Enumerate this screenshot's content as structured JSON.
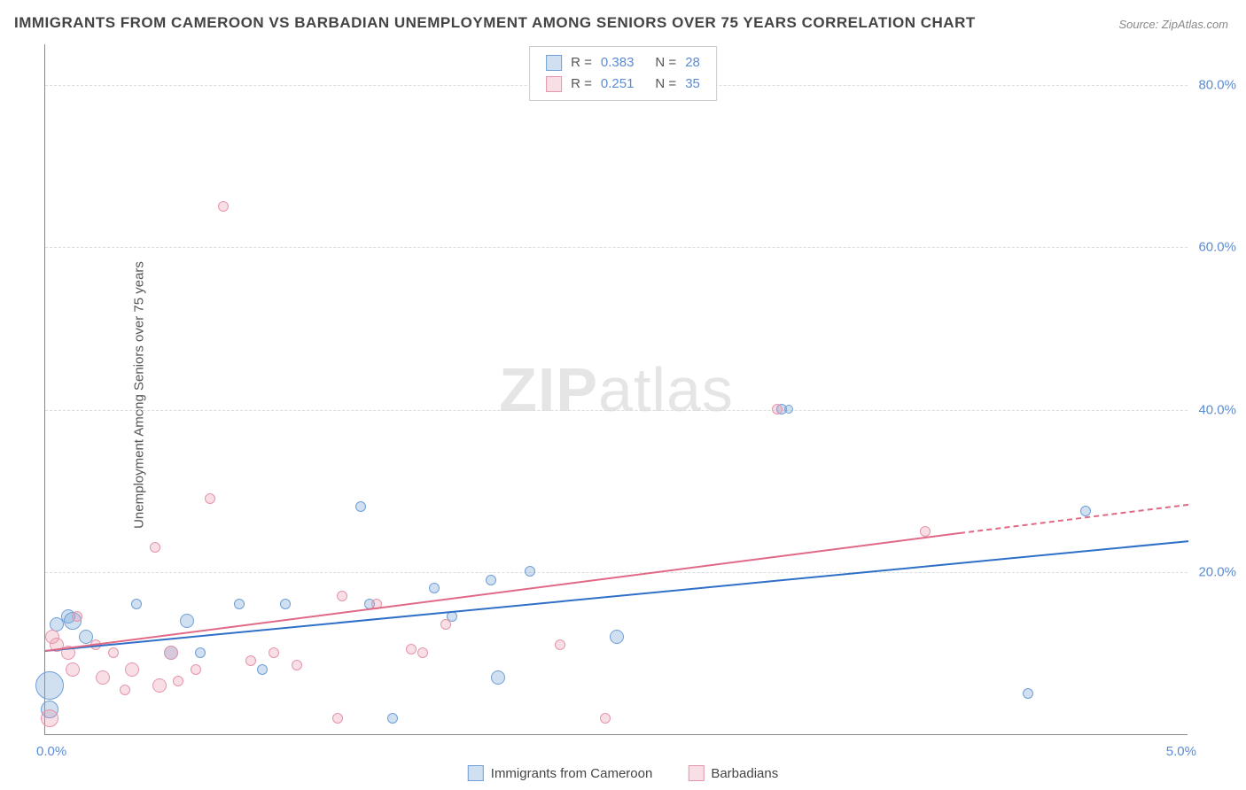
{
  "title": "IMMIGRANTS FROM CAMEROON VS BARBADIAN UNEMPLOYMENT AMONG SENIORS OVER 75 YEARS CORRELATION CHART",
  "source": "Source: ZipAtlas.com",
  "watermark_prefix": "ZIP",
  "watermark_suffix": "atlas",
  "chart": {
    "type": "scatter",
    "xlim": [
      0.0,
      5.0
    ],
    "ylim": [
      0.0,
      85.0
    ],
    "xticks": [
      {
        "v": 0.0,
        "label": "0.0%"
      },
      {
        "v": 5.0,
        "label": "5.0%"
      }
    ],
    "yticks": [
      {
        "v": 20.0,
        "label": "20.0%"
      },
      {
        "v": 40.0,
        "label": "40.0%"
      },
      {
        "v": 60.0,
        "label": "60.0%"
      },
      {
        "v": 80.0,
        "label": "80.0%"
      }
    ],
    "ylabel": "Unemployment Among Seniors over 75 years",
    "background_color": "#ffffff",
    "grid_color": "#dddddd",
    "series": [
      {
        "name": "Immigrants from Cameroon",
        "color_fill": "rgba(120,165,216,0.35)",
        "color_stroke": "#6f9fd8",
        "trend_color": "#2f6fc8",
        "r": 0.383,
        "n": 28,
        "trend": {
          "x1": 0.0,
          "y1": 10.5,
          "x2": 5.0,
          "y2": 24.0,
          "dash_above": 5.0
        },
        "points": [
          {
            "x": 0.02,
            "y": 6.0,
            "r": 16
          },
          {
            "x": 0.02,
            "y": 3.0,
            "r": 10
          },
          {
            "x": 0.05,
            "y": 13.5,
            "r": 8
          },
          {
            "x": 0.1,
            "y": 14.5,
            "r": 8
          },
          {
            "x": 0.12,
            "y": 14.0,
            "r": 10
          },
          {
            "x": 0.18,
            "y": 12.0,
            "r": 8
          },
          {
            "x": 0.4,
            "y": 16.0,
            "r": 6
          },
          {
            "x": 0.55,
            "y": 10.0,
            "r": 8
          },
          {
            "x": 0.62,
            "y": 14.0,
            "r": 8
          },
          {
            "x": 0.68,
            "y": 10.0,
            "r": 6
          },
          {
            "x": 0.85,
            "y": 16.0,
            "r": 6
          },
          {
            "x": 0.95,
            "y": 8.0,
            "r": 6
          },
          {
            "x": 1.05,
            "y": 16.0,
            "r": 6
          },
          {
            "x": 1.38,
            "y": 28.0,
            "r": 6
          },
          {
            "x": 1.42,
            "y": 16.0,
            "r": 6
          },
          {
            "x": 1.52,
            "y": 2.0,
            "r": 6
          },
          {
            "x": 1.7,
            "y": 18.0,
            "r": 6
          },
          {
            "x": 1.78,
            "y": 14.5,
            "r": 6
          },
          {
            "x": 1.95,
            "y": 19.0,
            "r": 6
          },
          {
            "x": 1.98,
            "y": 7.0,
            "r": 8
          },
          {
            "x": 2.12,
            "y": 20.0,
            "r": 6
          },
          {
            "x": 2.5,
            "y": 12.0,
            "r": 8
          },
          {
            "x": 3.22,
            "y": 40.0,
            "r": 6
          },
          {
            "x": 3.25,
            "y": 40.0,
            "r": 5
          },
          {
            "x": 4.3,
            "y": 5.0,
            "r": 6
          },
          {
            "x": 4.55,
            "y": 27.5,
            "r": 6
          }
        ]
      },
      {
        "name": "Barbadians",
        "color_fill": "rgba(230,150,170,0.30)",
        "color_stroke": "#e695aa",
        "trend_color": "#e06a86",
        "r": 0.251,
        "n": 35,
        "trend": {
          "x1": 0.0,
          "y1": 10.5,
          "x2": 4.0,
          "y2": 25.0,
          "dash_above": 4.0,
          "dash_to_x": 5.0,
          "dash_to_y": 28.5
        },
        "points": [
          {
            "x": 0.02,
            "y": 2.0,
            "r": 10
          },
          {
            "x": 0.03,
            "y": 12.0,
            "r": 8
          },
          {
            "x": 0.05,
            "y": 11.0,
            "r": 8
          },
          {
            "x": 0.1,
            "y": 10.0,
            "r": 8
          },
          {
            "x": 0.12,
            "y": 8.0,
            "r": 8
          },
          {
            "x": 0.14,
            "y": 14.5,
            "r": 6
          },
          {
            "x": 0.22,
            "y": 11.0,
            "r": 6
          },
          {
            "x": 0.25,
            "y": 7.0,
            "r": 8
          },
          {
            "x": 0.3,
            "y": 10.0,
            "r": 6
          },
          {
            "x": 0.35,
            "y": 5.5,
            "r": 6
          },
          {
            "x": 0.38,
            "y": 8.0,
            "r": 8
          },
          {
            "x": 0.48,
            "y": 23.0,
            "r": 6
          },
          {
            "x": 0.5,
            "y": 6.0,
            "r": 8
          },
          {
            "x": 0.55,
            "y": 10.0,
            "r": 8
          },
          {
            "x": 0.58,
            "y": 6.5,
            "r": 6
          },
          {
            "x": 0.66,
            "y": 8.0,
            "r": 6
          },
          {
            "x": 0.72,
            "y": 29.0,
            "r": 6
          },
          {
            "x": 0.78,
            "y": 65.0,
            "r": 6
          },
          {
            "x": 0.9,
            "y": 9.0,
            "r": 6
          },
          {
            "x": 1.0,
            "y": 10.0,
            "r": 6
          },
          {
            "x": 1.1,
            "y": 8.5,
            "r": 6
          },
          {
            "x": 1.28,
            "y": 2.0,
            "r": 6
          },
          {
            "x": 1.3,
            "y": 17.0,
            "r": 6
          },
          {
            "x": 1.45,
            "y": 16.0,
            "r": 6
          },
          {
            "x": 1.6,
            "y": 10.5,
            "r": 6
          },
          {
            "x": 1.65,
            "y": 10.0,
            "r": 6
          },
          {
            "x": 1.75,
            "y": 13.5,
            "r": 6
          },
          {
            "x": 2.25,
            "y": 11.0,
            "r": 6
          },
          {
            "x": 2.45,
            "y": 2.0,
            "r": 6
          },
          {
            "x": 3.2,
            "y": 40.0,
            "r": 6
          },
          {
            "x": 3.85,
            "y": 25.0,
            "r": 6
          }
        ]
      }
    ]
  },
  "legend_bottom": [
    {
      "label": "Immigrants from Cameroon",
      "fill": "rgba(120,165,216,0.35)",
      "stroke": "#6f9fd8"
    },
    {
      "label": "Barbadians",
      "fill": "rgba(230,150,170,0.30)",
      "stroke": "#e695aa"
    }
  ]
}
